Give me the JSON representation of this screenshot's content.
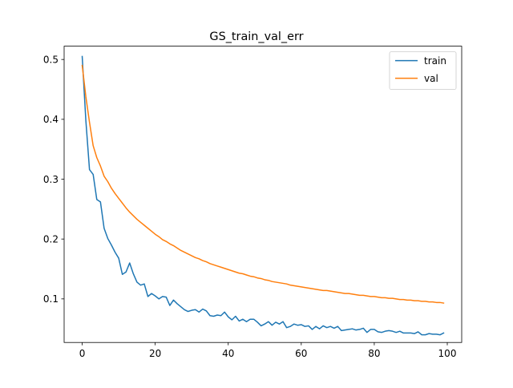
{
  "chart_data": {
    "type": "line",
    "title": "GS_train_val_err",
    "xlabel": "",
    "ylabel": "",
    "xlim": [
      -4.95,
      103.95
    ],
    "ylim": [
      0.0272,
      0.5222
    ],
    "xticks": [
      0,
      20,
      40,
      60,
      80,
      100
    ],
    "yticks": [
      0.1,
      0.2,
      0.3,
      0.4,
      0.5
    ],
    "grid": false,
    "legend_position": "top-right",
    "x": [
      0,
      1,
      2,
      3,
      4,
      5,
      6,
      7,
      8,
      9,
      10,
      11,
      12,
      13,
      14,
      15,
      16,
      17,
      18,
      19,
      20,
      21,
      22,
      23,
      24,
      25,
      26,
      27,
      28,
      29,
      30,
      31,
      32,
      33,
      34,
      35,
      36,
      37,
      38,
      39,
      40,
      41,
      42,
      43,
      44,
      45,
      46,
      47,
      48,
      49,
      50,
      51,
      52,
      53,
      54,
      55,
      56,
      57,
      58,
      59,
      60,
      61,
      62,
      63,
      64,
      65,
      66,
      67,
      68,
      69,
      70,
      71,
      72,
      73,
      74,
      75,
      76,
      77,
      78,
      79,
      80,
      81,
      82,
      83,
      84,
      85,
      86,
      87,
      88,
      89,
      90,
      91,
      92,
      93,
      94,
      95,
      96,
      97,
      98,
      99
    ],
    "series": [
      {
        "name": "train",
        "color": "#1f77b4",
        "values": [
          0.505,
          0.398,
          0.316,
          0.308,
          0.266,
          0.262,
          0.218,
          0.201,
          0.19,
          0.178,
          0.168,
          0.141,
          0.145,
          0.16,
          0.142,
          0.128,
          0.123,
          0.125,
          0.104,
          0.109,
          0.105,
          0.1,
          0.104,
          0.103,
          0.089,
          0.098,
          0.092,
          0.087,
          0.082,
          0.079,
          0.081,
          0.082,
          0.078,
          0.083,
          0.08,
          0.072,
          0.071,
          0.073,
          0.072,
          0.078,
          0.07,
          0.065,
          0.071,
          0.063,
          0.066,
          0.062,
          0.066,
          0.066,
          0.061,
          0.055,
          0.058,
          0.062,
          0.056,
          0.061,
          0.058,
          0.062,
          0.052,
          0.054,
          0.058,
          0.056,
          0.057,
          0.054,
          0.055,
          0.049,
          0.054,
          0.05,
          0.055,
          0.052,
          0.054,
          0.051,
          0.054,
          0.047,
          0.048,
          0.049,
          0.05,
          0.048,
          0.049,
          0.051,
          0.044,
          0.049,
          0.049,
          0.045,
          0.044,
          0.046,
          0.047,
          0.046,
          0.044,
          0.046,
          0.043,
          0.043,
          0.043,
          0.042,
          0.045,
          0.04,
          0.04,
          0.042,
          0.041,
          0.041,
          0.04,
          0.043
        ]
      },
      {
        "name": "val",
        "color": "#ff7f0e",
        "values": [
          0.49,
          0.438,
          0.395,
          0.356,
          0.336,
          0.322,
          0.305,
          0.296,
          0.285,
          0.276,
          0.268,
          0.26,
          0.252,
          0.245,
          0.239,
          0.233,
          0.228,
          0.223,
          0.218,
          0.213,
          0.208,
          0.204,
          0.199,
          0.196,
          0.192,
          0.189,
          0.185,
          0.181,
          0.178,
          0.175,
          0.172,
          0.169,
          0.167,
          0.164,
          0.162,
          0.159,
          0.157,
          0.155,
          0.153,
          0.151,
          0.149,
          0.147,
          0.145,
          0.143,
          0.142,
          0.14,
          0.138,
          0.137,
          0.135,
          0.134,
          0.132,
          0.131,
          0.129,
          0.128,
          0.127,
          0.126,
          0.125,
          0.123,
          0.122,
          0.121,
          0.12,
          0.119,
          0.118,
          0.117,
          0.116,
          0.115,
          0.114,
          0.114,
          0.113,
          0.112,
          0.111,
          0.11,
          0.109,
          0.109,
          0.108,
          0.107,
          0.106,
          0.106,
          0.105,
          0.104,
          0.104,
          0.103,
          0.102,
          0.102,
          0.101,
          0.101,
          0.1,
          0.099,
          0.099,
          0.098,
          0.098,
          0.097,
          0.097,
          0.096,
          0.096,
          0.095,
          0.095,
          0.094,
          0.094,
          0.093
        ]
      }
    ]
  }
}
